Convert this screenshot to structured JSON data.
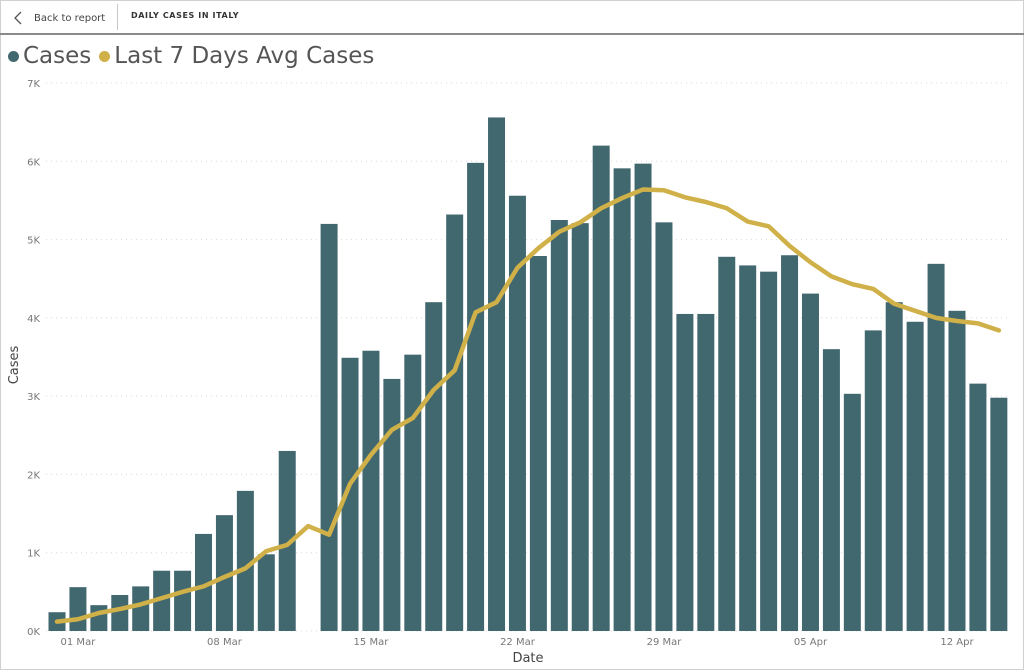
{
  "header": {
    "back_label": "Back to report",
    "title": "DAILY CASES IN ITALY"
  },
  "colors": {
    "bars": "#42686f",
    "line": "#d0b048",
    "grid": "#d8d8d8"
  },
  "chart_data": {
    "type": "bar+line",
    "xlabel": "Date",
    "ylabel": "Cases",
    "ylim": [
      0,
      7000
    ],
    "grid": true,
    "legend": "top-left",
    "y_ticks": [
      "0K",
      "1K",
      "2K",
      "3K",
      "4K",
      "5K",
      "6K",
      "7K"
    ],
    "x_ticks": [
      {
        "date": "2020-03-01",
        "label": "01 Mar"
      },
      {
        "date": "2020-03-08",
        "label": "08 Mar"
      },
      {
        "date": "2020-03-15",
        "label": "15 Mar"
      },
      {
        "date": "2020-03-22",
        "label": "22 Mar"
      },
      {
        "date": "2020-03-29",
        "label": "29 Mar"
      },
      {
        "date": "2020-04-05",
        "label": "05 Apr"
      },
      {
        "date": "2020-04-12",
        "label": "12 Apr"
      }
    ],
    "dates": [
      "2020-02-29",
      "2020-03-01",
      "2020-03-02",
      "2020-03-03",
      "2020-03-04",
      "2020-03-05",
      "2020-03-06",
      "2020-03-07",
      "2020-03-08",
      "2020-03-09",
      "2020-03-10",
      "2020-03-11",
      "2020-03-12",
      "2020-03-13",
      "2020-03-14",
      "2020-03-15",
      "2020-03-16",
      "2020-03-17",
      "2020-03-18",
      "2020-03-19",
      "2020-03-20",
      "2020-03-21",
      "2020-03-22",
      "2020-03-23",
      "2020-03-24",
      "2020-03-25",
      "2020-03-26",
      "2020-03-27",
      "2020-03-28",
      "2020-03-29",
      "2020-03-30",
      "2020-03-31",
      "2020-04-01",
      "2020-04-02",
      "2020-04-03",
      "2020-04-04",
      "2020-04-05",
      "2020-04-06",
      "2020-04-07",
      "2020-04-08",
      "2020-04-09",
      "2020-04-10",
      "2020-04-11",
      "2020-04-12",
      "2020-04-13",
      "2020-04-14"
    ],
    "series": [
      {
        "name": "Cases",
        "type": "bar",
        "values": [
          240,
          560,
          330,
          460,
          570,
          770,
          770,
          1240,
          1480,
          1790,
          980,
          2300,
          null,
          5200,
          3490,
          3580,
          3220,
          3530,
          4200,
          5320,
          5980,
          6560,
          5560,
          4790,
          5250,
          5210,
          6200,
          5910,
          5970,
          5220,
          4050,
          4050,
          4780,
          4670,
          4590,
          4800,
          4310,
          3600,
          3030,
          3840,
          4200,
          3950,
          4690,
          4090,
          3160,
          2980
        ]
      },
      {
        "name": "Last 7 Days Avg Cases",
        "type": "line",
        "values": [
          120,
          150,
          230,
          280,
          340,
          420,
          500,
          570,
          690,
          800,
          1020,
          1100,
          1340,
          1230,
          1880,
          2250,
          2570,
          2720,
          3080,
          3330,
          4070,
          4200,
          4640,
          4890,
          5100,
          5220,
          5400,
          5530,
          5640,
          5630,
          5540,
          5480,
          5400,
          5230,
          5170,
          4920,
          4710,
          4530,
          4430,
          4370,
          4180,
          4090,
          4000,
          3960,
          3930,
          3840
        ]
      }
    ]
  }
}
